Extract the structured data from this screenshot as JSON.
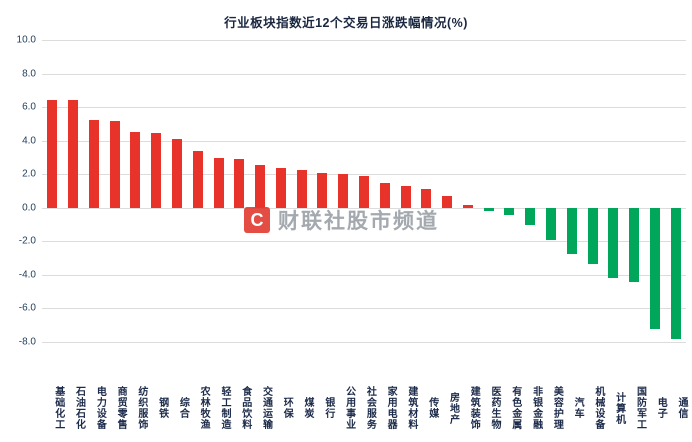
{
  "title": "行业板块指数近12个交易日涨跌幅情况(%)",
  "watermark": {
    "logo_letter": "C",
    "text": "财联社股市频道"
  },
  "chart_data": {
    "type": "bar",
    "title": "行业板块指数近12个交易日涨跌幅情况(%)",
    "categories": [
      "基础化工",
      "石油石化",
      "电力设备",
      "商贸零售",
      "纺织服饰",
      "钢铁",
      "综合",
      "农林牧渔",
      "轻工制造",
      "食品饮料",
      "交通运输",
      "环保",
      "煤炭",
      "银行",
      "公用事业",
      "社会服务",
      "家用电器",
      "建筑材料",
      "传媒",
      "房地产",
      "建筑装饰",
      "医药生物",
      "有色金属",
      "非银金融",
      "美容护理",
      "汽车",
      "机械设备",
      "计算机",
      "国防军工",
      "电子",
      "通信"
    ],
    "values": [
      6.45,
      6.4,
      5.25,
      5.2,
      4.5,
      4.45,
      4.1,
      3.4,
      2.95,
      2.9,
      2.55,
      2.35,
      2.25,
      2.1,
      2.0,
      1.9,
      1.45,
      1.3,
      1.1,
      0.7,
      0.15,
      -0.2,
      -0.45,
      -1.0,
      -1.9,
      -2.75,
      -3.35,
      -4.2,
      -4.4,
      -7.25,
      -7.8
    ],
    "xlabel": "",
    "ylabel": "",
    "ylim": [
      -8,
      10
    ],
    "ytick_labels": [
      "10.0",
      "8.0",
      "6.0",
      "4.0",
      "2.0",
      "0.0",
      "-2.0",
      "-4.0",
      "-6.0",
      "-8.0"
    ],
    "grid": true,
    "legend": "none",
    "colors": {
      "positive": "#e8332a",
      "negative": "#00a65a",
      "gridline": "#dcdcdc",
      "axis_text": "#24405f",
      "title_text": "#1a2740"
    }
  }
}
